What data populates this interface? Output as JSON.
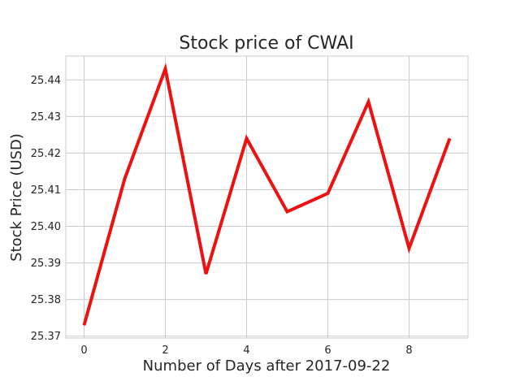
{
  "chart_data": {
    "type": "line",
    "title": "Stock price of CWAI",
    "xlabel": "Number of Days after 2017-09-22",
    "ylabel": "Stock Price (USD)",
    "x": [
      0,
      1,
      2,
      3,
      4,
      5,
      6,
      7,
      8,
      9
    ],
    "series": [
      {
        "values": [
          25.373,
          25.413,
          25.443,
          25.387,
          25.424,
          25.404,
          25.409,
          25.434,
          25.394,
          25.424
        ],
        "color": "#ee1111"
      }
    ],
    "xlim": [
      -0.45,
      9.45
    ],
    "ylim": [
      25.3695,
      25.4465
    ],
    "xticks": [
      "0",
      "2",
      "4",
      "6",
      "8"
    ],
    "yticks": [
      "25.37",
      "25.38",
      "25.39",
      "25.40",
      "25.41",
      "25.42",
      "25.43",
      "25.44"
    ],
    "grid": true,
    "colors": {
      "grid": "#cccccc",
      "spine": "#cccccc",
      "line": "#ee1111"
    }
  }
}
